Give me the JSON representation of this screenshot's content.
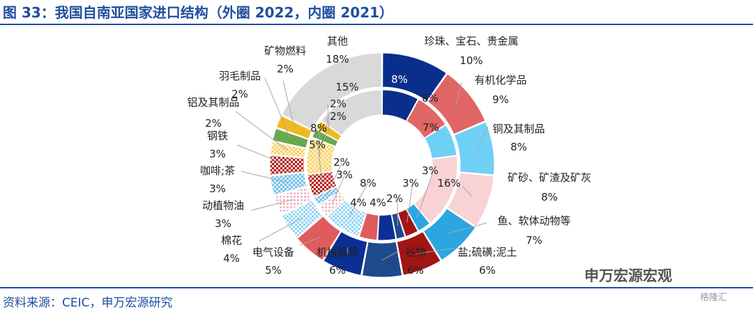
{
  "title": "图 33：我国自南亚国家进口结构（外圈 2022，内圈 2021）",
  "source": "资料来源：CEIC，申万宏源研究",
  "watermark": "申万宏源宏观",
  "watermark_logo": "格隆汇",
  "chart_data": {
    "type": "pie",
    "subtype": "double-donut",
    "title": "我国自南亚国家进口结构（外圈 2022，内圈 2021）",
    "rings": [
      {
        "name": "外圈 2022",
        "position": "outer"
      },
      {
        "name": "内圈 2021",
        "position": "inner"
      }
    ],
    "categories": [
      "珍珠、宝石、贵金属",
      "有机化学品",
      "铜及其制品",
      "矿砂、矿渣及矿灰",
      "鱼、软体动物等",
      "盐;硫磺;泥土",
      "谷物",
      "机械器具",
      "电气设备",
      "棉花",
      "动植物油",
      "咖啡;茶",
      "钢铁",
      "铝及其制品",
      "羽毛制品",
      "矿物燃料",
      "其他"
    ],
    "series": [
      {
        "name": "外圈 2022",
        "values": [
          10,
          9,
          8,
          8,
          7,
          6,
          6,
          6,
          5,
          4,
          3,
          3,
          3,
          2,
          2,
          2,
          18
        ]
      },
      {
        "name": "内圈 2021",
        "values": [
          8,
          8,
          7,
          16,
          3,
          3,
          2,
          4,
          4,
          8,
          3,
          2,
          5,
          8,
          2,
          2,
          15
        ]
      }
    ],
    "labels": {
      "outer": [
        "10%",
        "9%",
        "8%",
        "8%",
        "7%",
        "6%",
        "6%",
        "6%",
        "5%",
        "4%",
        "3%",
        "3%",
        "3%",
        "2%",
        "2%",
        "2%",
        "18%"
      ],
      "inner": [
        "8%",
        "8%",
        "7%",
        "16%",
        "3%",
        "3%",
        "2%",
        "4%",
        "4%",
        "8%",
        "3%",
        "2%",
        "5%",
        "8%",
        "2%",
        "2%",
        "15%"
      ]
    },
    "colors": [
      "#0a2e8c",
      "#e06666",
      "#6fd0f5",
      "#f8d2d4",
      "#2ba6e0",
      "#a31515",
      "#1e4a8c",
      "#0b2f93",
      "#e05c5c",
      "#8fd3f4",
      "#f9d7dd",
      "#78c2ea",
      "#c0392b",
      "#f9dc8a",
      "#6aa84f",
      "#f0b91c",
      "#d9d9d9"
    ],
    "patterns": [
      "solid",
      "solid",
      "solid",
      "solid",
      "solid",
      "solid",
      "solid",
      "solid",
      "solid",
      "dots",
      "dots",
      "checker",
      "checker",
      "dots",
      "solid",
      "solid",
      "solid"
    ],
    "legend": "none"
  }
}
